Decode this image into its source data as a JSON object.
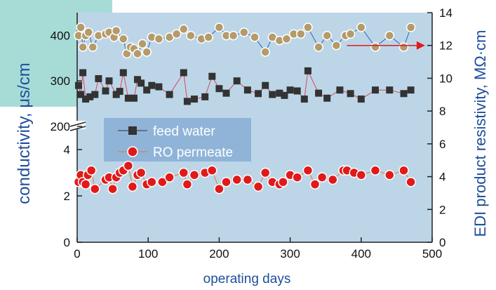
{
  "chart_data": {
    "type": "scatter",
    "xlabel": "operating days",
    "ylabel_left": "conductivity, μs/cm",
    "ylabel_right": "EDI product resistivity, MΩ·cm",
    "xlim": [
      0,
      500
    ],
    "x_ticks": [
      "0",
      "100",
      "200",
      "300",
      "400",
      "500"
    ],
    "left_upper_ticks": [
      "200",
      "300",
      "400"
    ],
    "left_lower_ticks": [
      "0",
      "2",
      "4"
    ],
    "right_ticks": [
      "0",
      "2",
      "4",
      "6",
      "8",
      "10",
      "12",
      "14"
    ],
    "right_ylim": [
      0,
      14
    ],
    "left_lower_ylim": [
      0,
      5
    ],
    "left_upper_ylim": [
      200,
      450
    ],
    "axis_break": true,
    "legend_position": "center-left",
    "background": "#bcd6e8",
    "series": [
      {
        "name": "feed water",
        "axis": "left-upper",
        "marker": "square",
        "color": "#333333",
        "line_color": "#d9485a",
        "x": [
          2,
          5,
          8,
          12,
          18,
          25,
          30,
          40,
          45,
          55,
          60,
          65,
          72,
          80,
          85,
          90,
          98,
          105,
          115,
          130,
          150,
          155,
          165,
          180,
          190,
          200,
          210,
          225,
          240,
          255,
          265,
          275,
          285,
          292,
          300,
          310,
          320,
          325,
          340,
          352,
          370,
          385,
          400,
          420,
          440,
          460,
          470
        ],
        "values": [
          290,
          270,
          318,
          260,
          265,
          270,
          305,
          278,
          300,
          270,
          277,
          318,
          262,
          262,
          303,
          295,
          280,
          290,
          287,
          270,
          318,
          255,
          260,
          265,
          310,
          283,
          273,
          300,
          280,
          272,
          290,
          270,
          273,
          268,
          280,
          278,
          260,
          322,
          273,
          262,
          280,
          272,
          260,
          280,
          280,
          272,
          280
        ]
      },
      {
        "name": "RO permeate",
        "axis": "left-lower",
        "marker": "circle",
        "color": "#e01a1a",
        "line_color": "#e07a2a",
        "x": [
          2,
          5,
          8,
          12,
          15,
          20,
          25,
          40,
          45,
          50,
          55,
          60,
          65,
          72,
          78,
          85,
          90,
          98,
          105,
          120,
          130,
          150,
          155,
          165,
          180,
          190,
          200,
          210,
          225,
          240,
          255,
          265,
          275,
          285,
          290,
          300,
          310,
          325,
          335,
          345,
          360,
          375,
          380,
          390,
          400,
          420,
          440,
          460,
          470
        ],
        "values": [
          2.6,
          2.9,
          2.6,
          2.5,
          2.9,
          3.1,
          2.3,
          2.7,
          2.8,
          2.3,
          2.8,
          3.0,
          3.1,
          3.3,
          2.4,
          2.9,
          3.0,
          2.5,
          2.6,
          2.6,
          2.8,
          3.0,
          2.5,
          2.9,
          3.0,
          3.1,
          2.3,
          2.6,
          2.7,
          2.7,
          2.4,
          3.0,
          2.6,
          2.5,
          2.6,
          2.9,
          2.8,
          3.1,
          2.5,
          2.8,
          2.7,
          3.1,
          3.1,
          3.0,
          2.9,
          3.1,
          2.9,
          3.1,
          2.6
        ]
      },
      {
        "name": "EDI product resistivity",
        "axis": "right",
        "marker": "circle",
        "color": "#b59a6a",
        "line_color": "#2d64b8",
        "x": [
          2,
          5,
          8,
          12,
          16,
          22,
          30,
          40,
          45,
          52,
          55,
          65,
          70,
          75,
          80,
          85,
          92,
          98,
          105,
          115,
          130,
          140,
          150,
          160,
          175,
          185,
          200,
          210,
          220,
          235,
          250,
          265,
          275,
          285,
          295,
          305,
          315,
          325,
          340,
          352,
          365,
          378,
          385,
          400,
          420,
          440,
          460,
          470
        ],
        "values": [
          12.6,
          13.1,
          11.9,
          12.6,
          12.8,
          11.9,
          12.6,
          12.7,
          12.8,
          12.5,
          12.9,
          12.4,
          11.5,
          11.9,
          11.8,
          11.5,
          12.1,
          11.6,
          12.5,
          12.4,
          12.5,
          12.7,
          13.0,
          12.6,
          12.4,
          12.5,
          13.1,
          12.6,
          12.6,
          12.8,
          12.5,
          11.6,
          12.5,
          12.3,
          12.4,
          12.7,
          12.7,
          13.1,
          11.9,
          12.6,
          12.0,
          12.6,
          12.7,
          13.1,
          11.9,
          12.6,
          11.9,
          13.1
        ]
      }
    ],
    "annotations": [
      {
        "type": "arrow",
        "from_x": 380,
        "to_x": 490,
        "y_right": 12,
        "color": "#e01a1a",
        "direction": "right"
      }
    ]
  }
}
